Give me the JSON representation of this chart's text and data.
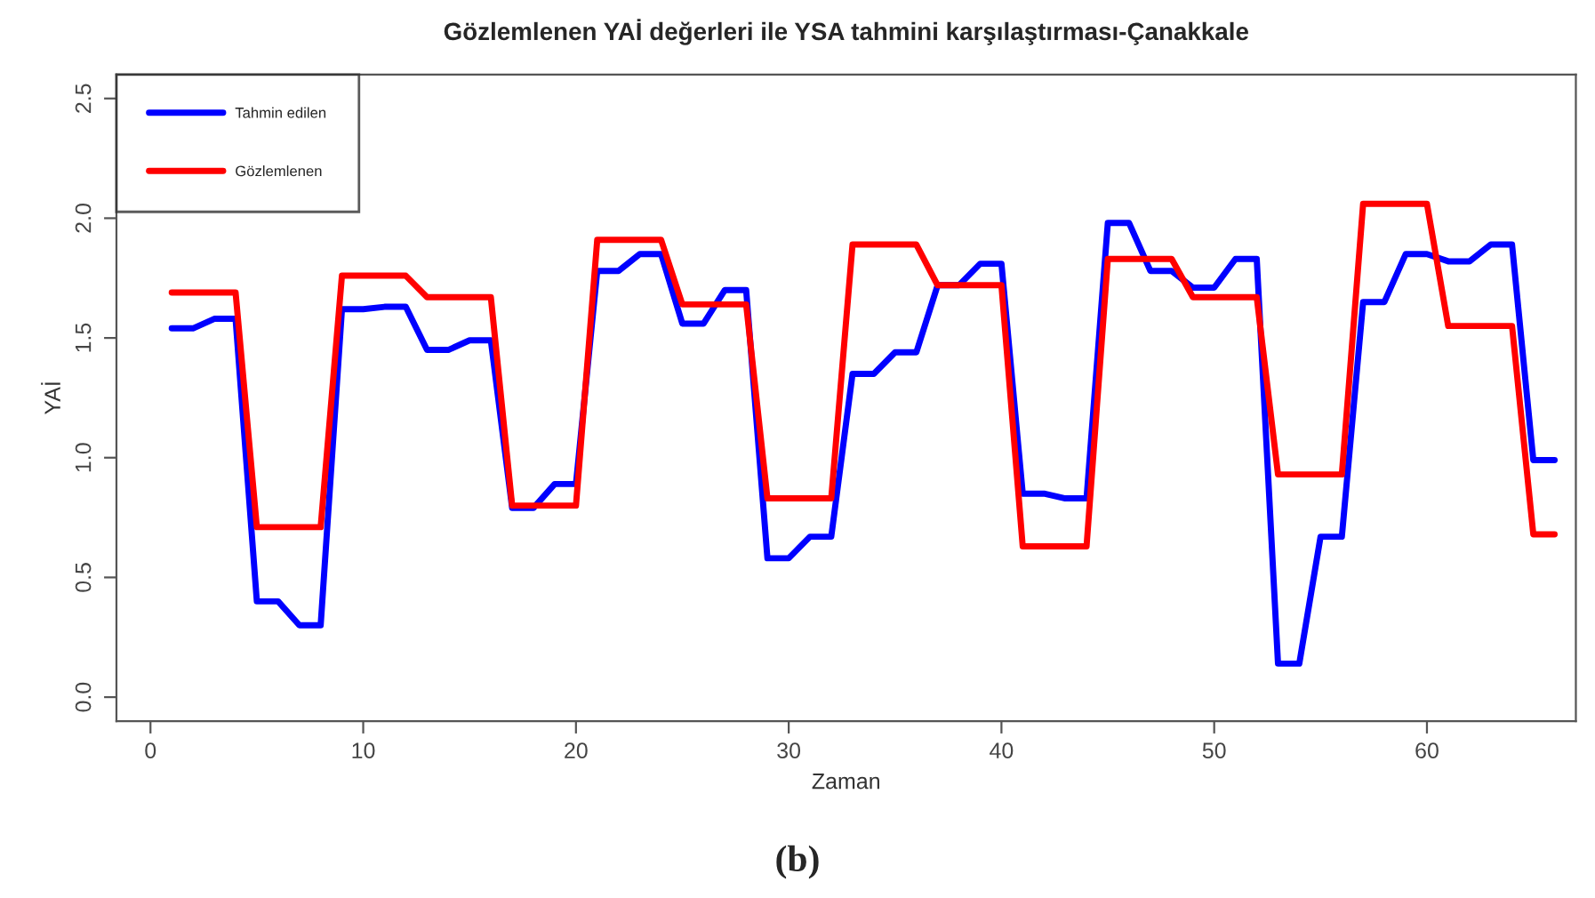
{
  "chart_data": {
    "type": "line",
    "title": "Gözlemlenen YAİ değerleri ile YSA tahmini karşılaştırması-Çanakkale",
    "xlabel": "Zaman",
    "ylabel": "YAİ",
    "x": [
      1,
      2,
      3,
      4,
      5,
      6,
      7,
      8,
      9,
      10,
      11,
      12,
      13,
      14,
      15,
      16,
      17,
      18,
      19,
      20,
      21,
      22,
      23,
      24,
      25,
      26,
      27,
      28,
      29,
      30,
      31,
      32,
      33,
      34,
      35,
      36,
      37,
      38,
      39,
      40,
      41,
      42,
      43,
      44,
      45,
      46,
      47,
      48,
      49,
      50,
      51,
      52,
      53,
      54,
      55,
      56,
      57,
      58,
      59,
      60,
      61,
      62,
      63,
      64,
      65,
      66
    ],
    "series": [
      {
        "name": "Tahmin edilen",
        "color": "#0000ff",
        "values": [
          1.54,
          1.54,
          1.58,
          1.58,
          0.4,
          0.4,
          0.3,
          0.3,
          1.62,
          1.62,
          1.63,
          1.63,
          1.45,
          1.45,
          1.49,
          1.49,
          0.79,
          0.79,
          0.89,
          0.89,
          1.78,
          1.78,
          1.85,
          1.85,
          1.56,
          1.56,
          1.7,
          1.7,
          0.58,
          0.58,
          0.67,
          0.67,
          1.35,
          1.35,
          1.44,
          1.44,
          1.72,
          1.72,
          1.81,
          1.81,
          0.85,
          0.85,
          0.83,
          0.83,
          1.98,
          1.98,
          1.78,
          1.78,
          1.71,
          1.71,
          1.83,
          1.83,
          0.14,
          0.14,
          0.67,
          0.67,
          1.65,
          1.65,
          1.85,
          1.85,
          1.82,
          1.82,
          1.89,
          1.89,
          0.99,
          0.99
        ]
      },
      {
        "name": "Gözlemlenen",
        "color": "#ff0000",
        "values": [
          1.69,
          1.69,
          1.69,
          1.69,
          0.71,
          0.71,
          0.71,
          0.71,
          1.76,
          1.76,
          1.76,
          1.76,
          1.67,
          1.67,
          1.67,
          1.67,
          0.8,
          0.8,
          0.8,
          0.8,
          1.91,
          1.91,
          1.91,
          1.91,
          1.64,
          1.64,
          1.64,
          1.64,
          0.83,
          0.83,
          0.83,
          0.83,
          1.89,
          1.89,
          1.89,
          1.89,
          1.72,
          1.72,
          1.72,
          1.72,
          0.63,
          0.63,
          0.63,
          0.63,
          1.83,
          1.83,
          1.83,
          1.83,
          1.67,
          1.67,
          1.67,
          1.67,
          0.93,
          0.93,
          0.93,
          0.93,
          2.06,
          2.06,
          2.06,
          2.06,
          1.55,
          1.55,
          1.55,
          1.55,
          0.68,
          0.68
        ]
      }
    ],
    "xlim": [
      -1.6,
      67
    ],
    "ylim": [
      -0.1,
      2.6
    ],
    "xticks": [
      0,
      10,
      20,
      30,
      40,
      50,
      60
    ],
    "yticks": [
      {
        "value": 0,
        "label": "0.0"
      },
      {
        "value": 0.5,
        "label": "0.5"
      },
      {
        "value": 1,
        "label": "1.0"
      },
      {
        "value": 1.5,
        "label": "1.5"
      },
      {
        "value": 2,
        "label": "2.0"
      },
      {
        "value": 2.5,
        "label": "2.5"
      }
    ],
    "legend": "top left",
    "grid": false,
    "line_style": "solid",
    "marker": "none",
    "annotations": [
      "(b)"
    ]
  }
}
